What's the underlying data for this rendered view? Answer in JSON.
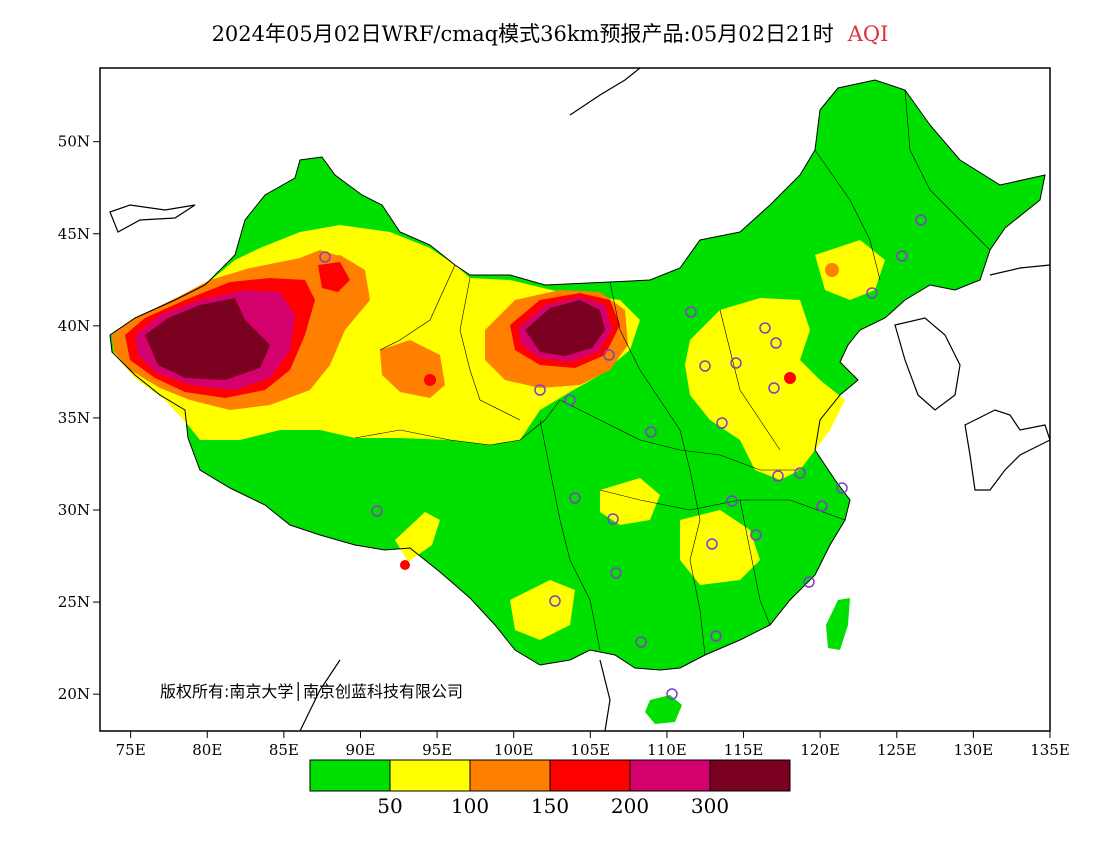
{
  "title": {
    "main": "2024年05月02日WRF/cmaq模式36km预报产品:05月02日21时",
    "variable": "AQI",
    "variable_color": "#e0303a"
  },
  "map": {
    "lon_range": [
      73,
      135
    ],
    "lat_range": [
      18,
      54
    ],
    "lon_ticks": [
      "75E",
      "80E",
      "85E",
      "90E",
      "95E",
      "100E",
      "105E",
      "110E",
      "115E",
      "120E",
      "125E",
      "130E",
      "135E"
    ],
    "lat_ticks": [
      "20N",
      "25N",
      "30N",
      "35N",
      "40N",
      "45N",
      "50N"
    ],
    "copyright": "版权所有:南京大学│南京创蓝科技有限公司"
  },
  "legend": {
    "colors": [
      "#00e000",
      "#ffff00",
      "#ff8000",
      "#ff0000",
      "#d4006e",
      "#7a0020"
    ],
    "labels": [
      "50",
      "100",
      "150",
      "200",
      "300"
    ]
  },
  "colors": {
    "good": "#00e000",
    "moderate": "#ffff00",
    "sensitive": "#ff8000",
    "unhealthy": "#ff0000",
    "very_unhealthy": "#d4006e",
    "hazardous": "#7a0020",
    "station_marker": "#8040c0"
  }
}
